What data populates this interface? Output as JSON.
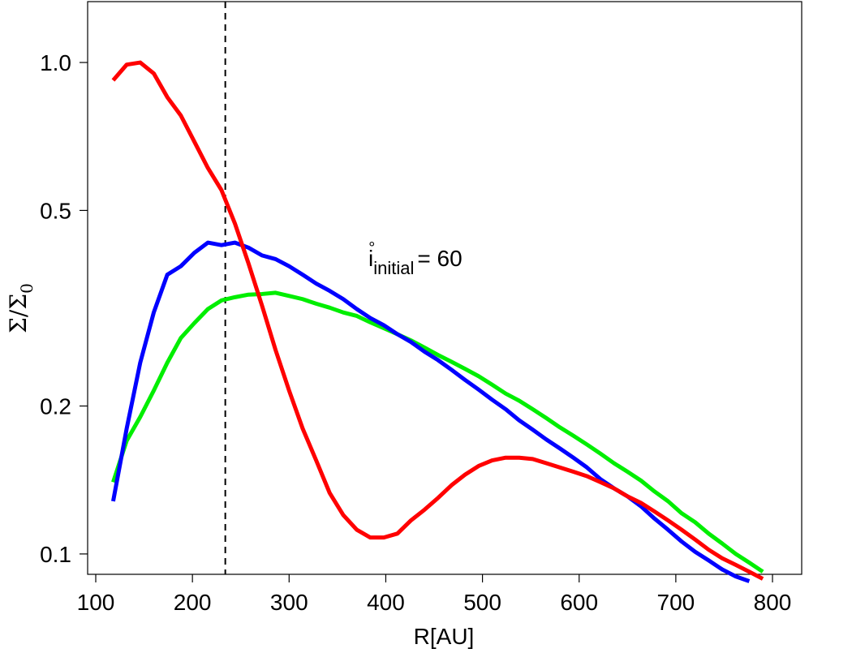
{
  "chart_data": {
    "type": "line",
    "xlabel": "R[AU]",
    "ylabel": {
      "text": "Σ/Σ",
      "sub": "0"
    },
    "annotation": {
      "base": "i",
      "sup": "°",
      "sub": "initial",
      "rest": "= 60",
      "x": 382,
      "y": 0.4
    },
    "vline": 234,
    "log_y": true,
    "grid": false,
    "xlim": [
      91.6,
      830.2
    ],
    "ylim": [
      0.0909,
      1.33
    ],
    "xticks": [
      100,
      200,
      300,
      400,
      500,
      600,
      700,
      800
    ],
    "yticks": [
      0.1,
      0.2,
      0.5,
      {
        "value": 1,
        "label": "1.0"
      }
    ],
    "x": [
      118,
      132,
      146,
      160,
      174,
      188,
      202,
      216,
      230,
      244,
      258,
      272,
      286,
      300,
      314,
      328,
      342,
      356,
      370,
      384,
      398,
      412,
      426,
      440,
      454,
      468,
      482,
      496,
      510,
      524,
      538,
      552,
      566,
      580,
      594,
      608,
      622,
      636,
      650,
      664,
      678,
      692,
      706,
      720,
      734,
      748,
      762,
      776,
      790
    ],
    "series": [
      {
        "color": "#00ee00",
        "values": [
          0.14,
          0.17,
          0.19,
          0.215,
          0.245,
          0.275,
          0.295,
          0.315,
          0.328,
          0.333,
          0.337,
          0.338,
          0.34,
          0.335,
          0.33,
          0.323,
          0.317,
          0.31,
          0.305,
          0.296,
          0.288,
          0.28,
          0.272,
          0.263,
          0.254,
          0.246,
          0.238,
          0.23,
          0.221,
          0.212,
          0.205,
          0.197,
          0.189,
          0.181,
          0.174,
          0.167,
          0.16,
          0.153,
          0.147,
          0.141,
          0.134,
          0.128,
          0.121,
          0.116,
          0.11,
          0.105,
          0.1,
          0.096,
          0.092
        ]
      },
      {
        "color": "#0000ff",
        "values": [
          0.128,
          0.18,
          0.245,
          0.31,
          0.37,
          0.385,
          0.41,
          0.43,
          0.425,
          0.43,
          0.42,
          0.405,
          0.398,
          0.385,
          0.37,
          0.355,
          0.343,
          0.33,
          0.315,
          0.302,
          0.292,
          0.28,
          0.27,
          0.258,
          0.248,
          0.237,
          0.226,
          0.216,
          0.206,
          0.197,
          0.187,
          0.179,
          0.171,
          0.164,
          0.157,
          0.15,
          0.142,
          0.136,
          0.131,
          0.125,
          0.118,
          0.112,
          0.106,
          0.101,
          0.097,
          0.093,
          0.09,
          0.088,
          null
        ]
      },
      {
        "color": "#ff0000",
        "values": [
          0.92,
          0.99,
          1.0,
          0.95,
          0.85,
          0.78,
          0.69,
          0.61,
          0.55,
          0.47,
          0.39,
          0.32,
          0.26,
          0.215,
          0.18,
          0.155,
          0.133,
          0.12,
          0.112,
          0.108,
          0.108,
          0.11,
          0.117,
          0.123,
          0.13,
          0.138,
          0.145,
          0.151,
          0.155,
          0.157,
          0.157,
          0.156,
          0.153,
          0.15,
          0.147,
          0.144,
          0.14,
          0.136,
          0.131,
          0.127,
          0.122,
          0.117,
          0.112,
          0.107,
          0.102,
          0.098,
          0.095,
          0.092,
          0.089
        ]
      }
    ]
  }
}
